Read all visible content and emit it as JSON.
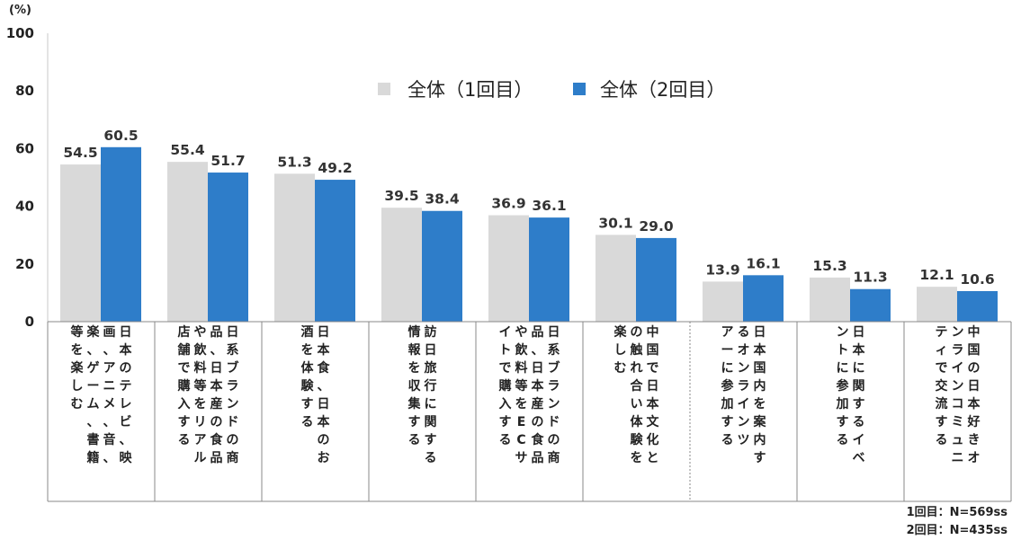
{
  "chart_data": {
    "type": "bar",
    "unit_label": "(%)",
    "yticks": [
      "100",
      "80",
      "60",
      "40",
      "20",
      "0"
    ],
    "ylim": [
      0,
      100
    ],
    "grid": false,
    "legend_position": "top",
    "colors": {
      "series1": "#d9d9d9",
      "series2": "#2e7dc9"
    },
    "series": [
      {
        "name": "全体（1回目）",
        "values": [
          54.5,
          55.4,
          51.3,
          39.5,
          36.9,
          30.1,
          13.9,
          15.3,
          12.1
        ]
      },
      {
        "name": "全体（2回目）",
        "values": [
          60.5,
          51.7,
          49.2,
          38.4,
          36.1,
          29.0,
          16.1,
          11.3,
          10.6
        ]
      }
    ],
    "value_labels": [
      [
        "54.5",
        "60.5"
      ],
      [
        "55.4",
        "51.7"
      ],
      [
        "51.3",
        "49.2"
      ],
      [
        "39.5",
        "38.4"
      ],
      [
        "36.9",
        "36.1"
      ],
      [
        "30.1",
        "29.0"
      ],
      [
        "13.9",
        "16.1"
      ],
      [
        "15.3",
        "11.3"
      ],
      [
        "12.1",
        "10.6"
      ]
    ],
    "categories": [
      [
        "日本のテレビ、映",
        "画、アニメ、音、",
        "楽、ゲーム、書籍",
        "等を楽しむ"
      ],
      [
        "日系ブランドの商",
        "品、日本産の食品",
        "や飲料等をリアル",
        "店舗で購入する"
      ],
      [
        "日本食、日本のお",
        "酒を体験する"
      ],
      [
        "訪日旅行に関する",
        "情報を収集する"
      ],
      [
        "日系ブランドの商",
        "品、日本産の食品",
        "や飲料等をECサ",
        "イトで購入する"
      ],
      [
        "中国で日本文化と",
        "の触れ合い体験を",
        "楽しむ"
      ],
      [
        "日本国内を案内す",
        "るオンラインツ",
        "アーに参加する"
      ],
      [
        "日本に関するイベ",
        "ントに参加する"
      ],
      [
        "中国の日本好きオ",
        "ンラインコミュニ",
        "ティで交流する"
      ]
    ],
    "footnotes": [
      "1回目：N=569ss",
      "2回目：N=435ss"
    ]
  }
}
